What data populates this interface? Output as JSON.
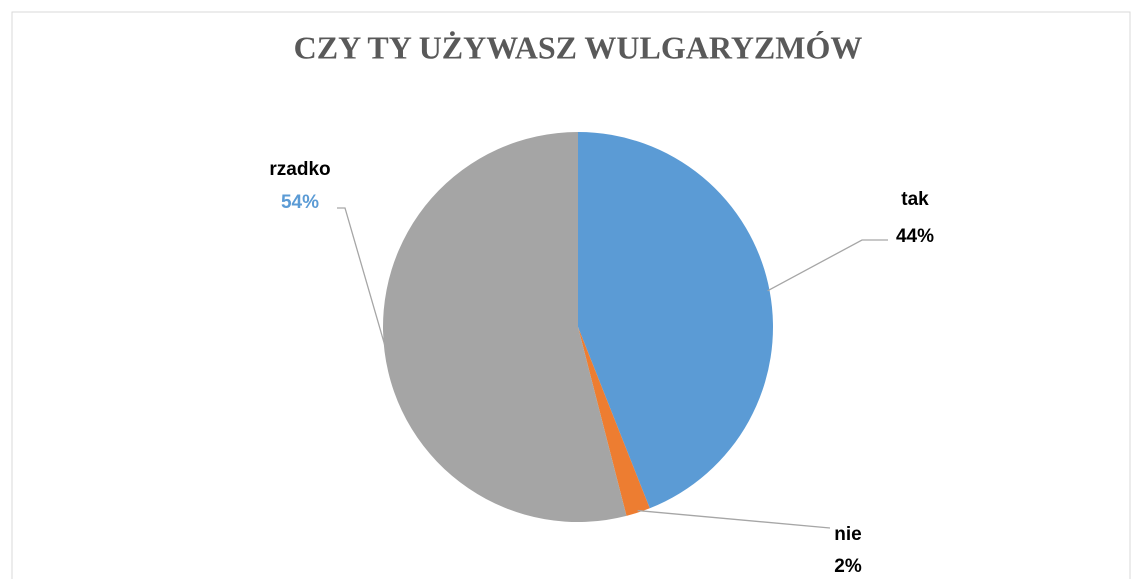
{
  "chart_data": {
    "type": "pie",
    "title": "CZY TY UŻYWASZ WULGARYZMÓW",
    "categories": [
      "tak",
      "nie",
      "rzadko"
    ],
    "values": [
      44,
      2,
      54
    ],
    "value_labels": [
      "44%",
      "2%",
      "54%"
    ],
    "colors": [
      "#5b9bd5",
      "#ed7d31",
      "#a5a5a5"
    ],
    "value_label_colors": [
      "#000000",
      "#000000",
      "#5b9bd5"
    ]
  }
}
